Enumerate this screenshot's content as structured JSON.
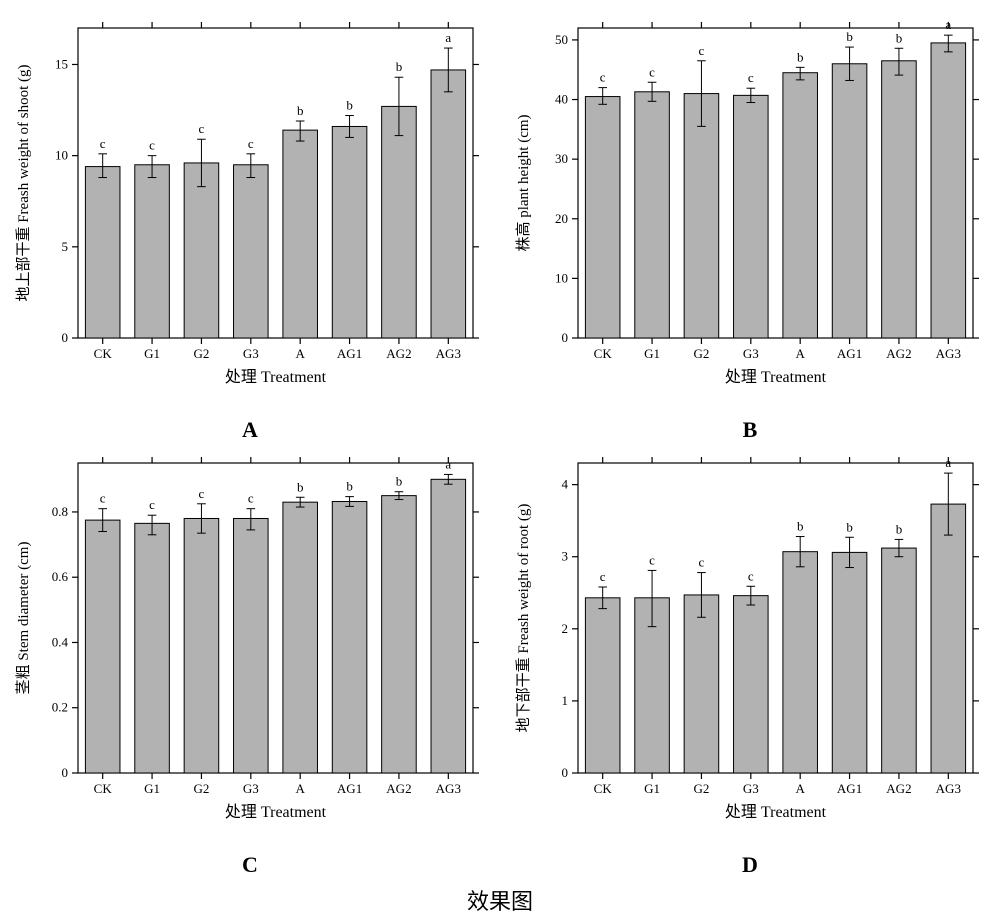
{
  "caption": "效果图",
  "common": {
    "categories": [
      "CK",
      "G1",
      "G2",
      "G3",
      "A",
      "AG1",
      "AG2",
      "AG3"
    ],
    "xlabel": "处理 Treatment",
    "bar_color": "#b2b2b2",
    "bar_stroke": "#000000",
    "frame_color": "#000000",
    "background": "#ffffff",
    "axis_fontsize_pt": 13,
    "label_fontsize_pt": 16,
    "letter_fontsize_pt": 13,
    "panel_letter_fontsize_pt": 22,
    "bar_width_ratio": 0.7,
    "error_cap_ratio": 0.25
  },
  "panels": [
    {
      "id": "A",
      "ylabel": "地上部干重 Freash weight of shoot (g)",
      "ylim": [
        0,
        17
      ],
      "yticks": [
        0,
        5,
        10,
        15
      ],
      "values": [
        9.4,
        9.5,
        9.6,
        9.5,
        11.4,
        11.6,
        12.7,
        14.7
      ],
      "err_low": [
        0.6,
        0.7,
        1.3,
        0.7,
        0.6,
        0.6,
        1.6,
        1.2
      ],
      "err_high": [
        0.7,
        0.5,
        1.3,
        0.6,
        0.5,
        0.6,
        1.6,
        1.2
      ],
      "letters": [
        "c",
        "c",
        "c",
        "c",
        "b",
        "b",
        "b",
        "a"
      ]
    },
    {
      "id": "B",
      "ylabel": "株高 plant height (cm)",
      "ylim": [
        0,
        52
      ],
      "yticks": [
        0,
        10,
        20,
        30,
        40,
        50
      ],
      "values": [
        40.5,
        41.3,
        41.0,
        40.7,
        44.5,
        46.0,
        46.5,
        49.5
      ],
      "err_low": [
        1.3,
        1.6,
        5.5,
        1.2,
        1.2,
        2.8,
        2.4,
        1.5
      ],
      "err_high": [
        1.5,
        1.6,
        5.5,
        1.2,
        0.9,
        2.8,
        2.1,
        1.3
      ],
      "letters": [
        "c",
        "c",
        "c",
        "c",
        "b",
        "b",
        "b",
        "a"
      ]
    },
    {
      "id": "C",
      "ylabel": "茎粗 Stem diameter (cm)",
      "ylim": [
        0.0,
        0.95
      ],
      "yticks": [
        0.0,
        0.2,
        0.4,
        0.6,
        0.8
      ],
      "values": [
        0.775,
        0.765,
        0.78,
        0.78,
        0.83,
        0.832,
        0.85,
        0.9
      ],
      "err_low": [
        0.035,
        0.035,
        0.045,
        0.035,
        0.015,
        0.015,
        0.012,
        0.015
      ],
      "err_high": [
        0.035,
        0.025,
        0.045,
        0.03,
        0.015,
        0.015,
        0.012,
        0.015
      ],
      "letters": [
        "c",
        "c",
        "c",
        "c",
        "b",
        "b",
        "b",
        "a"
      ]
    },
    {
      "id": "D",
      "ylabel": "地下部干重 Freash weight of root (g)",
      "ylim": [
        0.0,
        4.3
      ],
      "yticks": [
        0,
        1,
        2,
        3,
        4
      ],
      "values": [
        2.43,
        2.43,
        2.47,
        2.46,
        3.07,
        3.06,
        3.12,
        3.73
      ],
      "err_low": [
        0.15,
        0.4,
        0.31,
        0.13,
        0.21,
        0.21,
        0.12,
        0.43
      ],
      "err_high": [
        0.15,
        0.38,
        0.31,
        0.13,
        0.21,
        0.21,
        0.12,
        0.43
      ],
      "letters": [
        "c",
        "c",
        "c",
        "c",
        "b",
        "b",
        "b",
        "a"
      ]
    }
  ]
}
